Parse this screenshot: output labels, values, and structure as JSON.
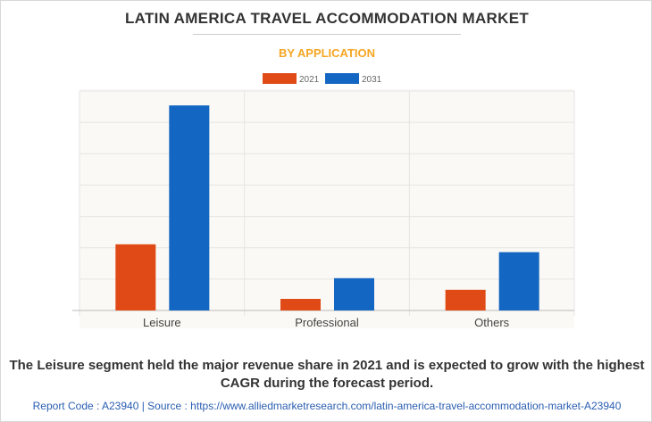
{
  "title": "LATIN AMERICA TRAVEL ACCOMMODATION MARKET",
  "subtitle": "BY APPLICATION",
  "caption": "The Leisure segment held the major revenue share in 2021 and is expected to grow with the highest CAGR during the forecast period.",
  "footer": "Report Code : A23940  |  Source : https://www.alliedmarketresearch.com/latin-america-travel-accommodation-market-A23940",
  "chart_data": {
    "type": "bar",
    "title": "LATIN AMERICA TRAVEL ACCOMMODATION MARKET",
    "subtitle": "BY APPLICATION",
    "categories": [
      "Leisure",
      "Professional",
      "Others"
    ],
    "series": [
      {
        "name": "2021",
        "color": "#e04a16",
        "values": [
          2.11,
          0.37,
          0.66
        ]
      },
      {
        "name": "2031",
        "color": "#1366c2",
        "values": [
          6.54,
          1.03,
          1.86
        ]
      }
    ],
    "ylim": [
      0,
      7
    ],
    "yticks_labeled": false,
    "grid": true,
    "legend": "top-center",
    "xlabel": "",
    "ylabel": ""
  }
}
